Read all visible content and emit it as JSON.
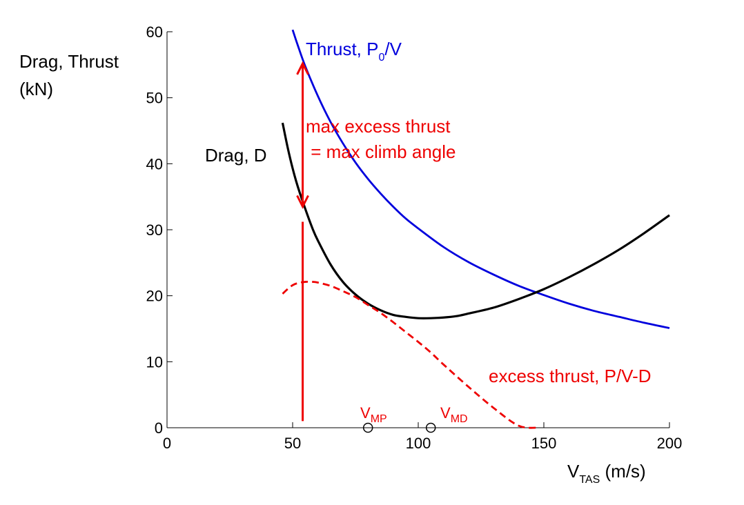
{
  "chart_data": {
    "type": "line",
    "ylabel_lines": [
      "Drag, Thrust",
      "(kN)"
    ],
    "xlabel": {
      "main": "V",
      "sub": "TAS",
      "tail": " (m/s)"
    },
    "xlim": [
      0,
      200
    ],
    "ylim": [
      0,
      60
    ],
    "xticks": [
      0,
      50,
      100,
      150,
      200
    ],
    "yticks": [
      0,
      10,
      20,
      30,
      40,
      50,
      60
    ],
    "grid": false,
    "series": [
      {
        "id": "thrust",
        "label": {
          "main": "Thrust, P",
          "sub": "0",
          "tail": "/V"
        },
        "color": "#0000dd",
        "style": "solid",
        "x": [
          50,
          52,
          55,
          60,
          65,
          70,
          75,
          80,
          85,
          90,
          95,
          100,
          110,
          120,
          130,
          140,
          150,
          160,
          170,
          180,
          190,
          200
        ],
        "y": [
          60.3,
          58.0,
          54.8,
          50.3,
          46.4,
          43.1,
          40.2,
          37.7,
          35.5,
          33.5,
          31.7,
          30.2,
          27.4,
          25.1,
          23.2,
          21.5,
          20.1,
          18.8,
          17.7,
          16.8,
          15.9,
          15.1
        ]
      },
      {
        "id": "drag",
        "label": {
          "main": "Drag, D",
          "sub": "",
          "tail": ""
        },
        "color": "#000000",
        "style": "solid",
        "x": [
          46,
          48,
          50,
          52,
          55,
          58,
          60,
          65,
          70,
          75,
          80,
          85,
          90,
          95,
          100,
          105,
          110,
          115,
          120,
          130,
          140,
          150,
          160,
          170,
          180,
          190,
          200
        ],
        "y": [
          46.2,
          42.5,
          39.3,
          36.6,
          33.2,
          30.1,
          28.4,
          24.8,
          22.1,
          20.2,
          18.8,
          17.8,
          17.1,
          16.8,
          16.6,
          16.6,
          16.7,
          16.9,
          17.3,
          18.2,
          19.5,
          21.0,
          22.8,
          24.8,
          27.0,
          29.5,
          32.2
        ]
      },
      {
        "id": "excess",
        "label": {
          "main": "excess thrust, P/V-D",
          "sub": "",
          "tail": ""
        },
        "color": "#ee0000",
        "style": "dashed",
        "x": [
          46,
          48,
          50,
          52,
          55,
          58,
          60,
          65,
          70,
          75,
          80,
          85,
          90,
          95,
          100,
          105,
          110,
          120,
          130,
          140,
          148
        ],
        "y": [
          20.3,
          21.0,
          21.6,
          21.9,
          22.1,
          22.1,
          22.0,
          21.5,
          20.7,
          19.8,
          18.6,
          17.4,
          16.0,
          14.5,
          13.0,
          11.4,
          9.6,
          6.2,
          3.0,
          0.3,
          0
        ]
      }
    ],
    "annotations": {
      "arrow": {
        "x": 54,
        "y_top": 55.2,
        "y_bottom": 33.5,
        "color": "#ee0000"
      },
      "bar": {
        "x": 54,
        "y_top": 31.2,
        "y_bottom": 1.0,
        "color": "#ee0000"
      },
      "max_text": [
        "max excess thrust",
        " = max climb angle"
      ],
      "markers": [
        {
          "x": 80,
          "y": 0,
          "label": "V",
          "sub": "MP"
        },
        {
          "x": 105,
          "y": 0,
          "label": "V",
          "sub": "MD"
        }
      ]
    }
  }
}
